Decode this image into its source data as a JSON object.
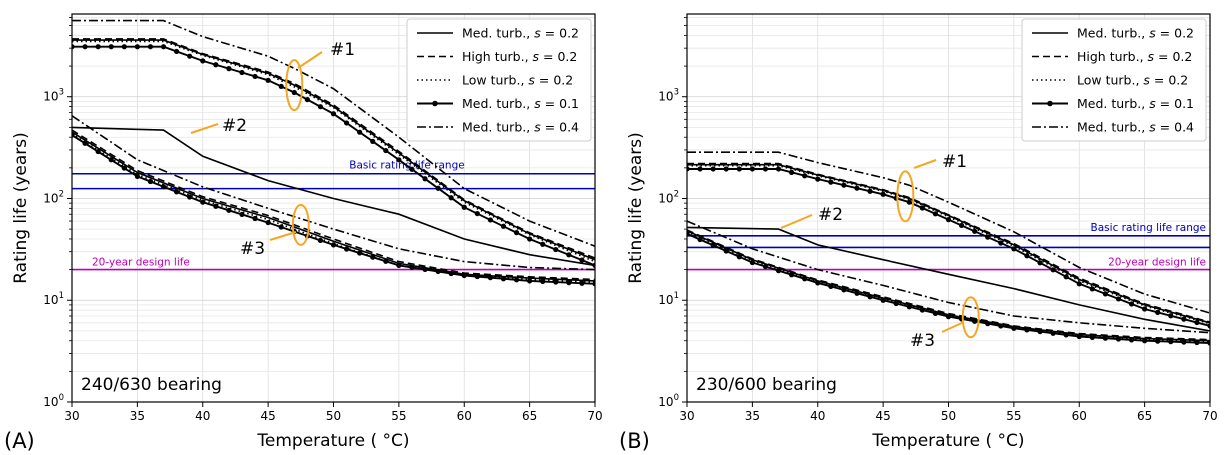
{
  "colors": {
    "basic_range": "#0000bb",
    "design_life": "#bb00bb",
    "callout": "#f5a623",
    "series": "#000000"
  },
  "chart_data": [
    {
      "type": "line",
      "panel_label": "(A)",
      "annotation": "240/630 bearing",
      "xlabel": "Temperature (°C)",
      "ylabel": "Rating life (years)",
      "xlim": [
        30,
        70
      ],
      "ylim": [
        1,
        6500
      ],
      "yscale": "log",
      "grid": true,
      "legend_position": "top-right",
      "x_ticks": [
        30,
        35,
        40,
        45,
        50,
        55,
        60,
        65,
        70
      ],
      "y_ticks": [
        "10^0",
        "10^1",
        "10^2",
        "10^3"
      ],
      "reference_lines": [
        {
          "label": "Basic rating life range",
          "values": [
            125,
            175
          ]
        },
        {
          "label": "20-year design life",
          "values": [
            20
          ]
        }
      ],
      "callouts": [
        "#1",
        "#2",
        "#3"
      ],
      "legend": [
        {
          "text": "Med. turb., s = 0.2",
          "style": "solid"
        },
        {
          "text": "High turb., s = 0.2",
          "style": "dashed"
        },
        {
          "text": "Low turb., s = 0.2",
          "style": "dotted"
        },
        {
          "text": "Med. turb., s = 0.1",
          "style": "solid-marker"
        },
        {
          "text": "Med. turb., s = 0.4",
          "style": "dashdot"
        }
      ],
      "series": [
        {
          "name": "#1 Med. turb., s = 0.2",
          "style": "solid",
          "x": [
            30,
            37,
            40,
            45,
            47,
            50,
            55,
            60,
            65,
            70
          ],
          "y": [
            3600,
            3600,
            2600,
            1700,
            1300,
            800,
            280,
            95,
            45,
            25
          ]
        },
        {
          "name": "#1 High turb., s = 0.2",
          "style": "dashed",
          "x": [
            30,
            37,
            40,
            45,
            47,
            50,
            55,
            60,
            65,
            70
          ],
          "y": [
            3700,
            3700,
            2650,
            1750,
            1350,
            830,
            290,
            97,
            46,
            26
          ]
        },
        {
          "name": "#1 Low turb., s = 0.2",
          "style": "dotted",
          "x": [
            30,
            37,
            40,
            45,
            47,
            50,
            55,
            60,
            65,
            70
          ],
          "y": [
            3500,
            3500,
            2550,
            1650,
            1250,
            780,
            270,
            92,
            44,
            24
          ]
        },
        {
          "name": "#1 Med. turb., s = 0.1",
          "style": "solid-marker",
          "x": [
            30,
            37,
            40,
            45,
            47,
            50,
            55,
            60,
            65,
            70
          ],
          "y": [
            3100,
            3100,
            2250,
            1450,
            1100,
            680,
            240,
            82,
            40,
            22
          ]
        },
        {
          "name": "#1 Med. turb., s = 0.4",
          "style": "dashdot",
          "x": [
            30,
            37,
            40,
            45,
            47,
            50,
            55,
            60,
            65,
            70
          ],
          "y": [
            5600,
            5600,
            3900,
            2500,
            1900,
            1200,
            400,
            125,
            60,
            34
          ]
        },
        {
          "name": "#2 Med. turb., s = 0.2",
          "style": "solid",
          "x": [
            30,
            37,
            40,
            45,
            50,
            55,
            60,
            65,
            70
          ],
          "y": [
            500,
            470,
            260,
            150,
            100,
            70,
            40,
            28,
            22
          ]
        },
        {
          "name": "#3 Med. turb., s = 0.2",
          "style": "solid",
          "x": [
            30,
            35,
            40,
            45,
            50,
            55,
            60,
            65,
            70
          ],
          "y": [
            450,
            180,
            100,
            65,
            38,
            23,
            18,
            16.5,
            15.5
          ]
        },
        {
          "name": "#3 High turb., s = 0.2",
          "style": "dashed",
          "x": [
            30,
            35,
            40,
            45,
            50,
            55,
            60,
            65,
            70
          ],
          "y": [
            470,
            188,
            104,
            68,
            40,
            24,
            18.5,
            17,
            16
          ]
        },
        {
          "name": "#3 Low turb., s = 0.2",
          "style": "dotted",
          "x": [
            30,
            35,
            40,
            45,
            50,
            55,
            60,
            65,
            70
          ],
          "y": [
            430,
            172,
            96,
            62,
            36,
            22,
            17.5,
            16,
            15
          ]
        },
        {
          "name": "#3 Med. turb., s = 0.1",
          "style": "solid-marker",
          "x": [
            30,
            35,
            40,
            45,
            50,
            55,
            60,
            65,
            70
          ],
          "y": [
            420,
            165,
            92,
            58,
            35,
            22,
            17.5,
            15.5,
            14.5
          ]
        },
        {
          "name": "#3 Med. turb., s = 0.4",
          "style": "dashdot",
          "x": [
            30,
            35,
            40,
            45,
            50,
            55,
            60,
            65,
            70
          ],
          "y": [
            650,
            240,
            130,
            80,
            50,
            32,
            24,
            21,
            20
          ]
        }
      ]
    },
    {
      "type": "line",
      "panel_label": "(B)",
      "annotation": "230/600 bearing",
      "xlabel": "Temperature (°C)",
      "ylabel": "Rating life (years)",
      "xlim": [
        30,
        70
      ],
      "ylim": [
        1,
        6500
      ],
      "yscale": "log",
      "grid": true,
      "legend_position": "top-right",
      "x_ticks": [
        30,
        35,
        40,
        45,
        50,
        55,
        60,
        65,
        70
      ],
      "y_ticks": [
        "10^0",
        "10^1",
        "10^2",
        "10^3"
      ],
      "reference_lines": [
        {
          "label": "Basic rating life range",
          "values": [
            33,
            43
          ]
        },
        {
          "label": "20-year design life",
          "values": [
            20
          ]
        }
      ],
      "callouts": [
        "#1",
        "#2",
        "#3"
      ],
      "legend": [
        {
          "text": "Med. turb., s = 0.2",
          "style": "solid"
        },
        {
          "text": "High turb., s = 0.2",
          "style": "dashed"
        },
        {
          "text": "Low turb., s = 0.2",
          "style": "dotted"
        },
        {
          "text": "Med. turb., s = 0.1",
          "style": "solid-marker"
        },
        {
          "text": "Med. turb., s = 0.4",
          "style": "dashdot"
        }
      ],
      "series": [
        {
          "name": "#1 Med. turb., s = 0.2",
          "style": "solid",
          "x": [
            30,
            37,
            40,
            45,
            47,
            50,
            55,
            60,
            65,
            70
          ],
          "y": [
            215,
            215,
            170,
            120,
            100,
            68,
            35,
            16,
            9,
            6
          ]
        },
        {
          "name": "#1 High turb., s = 0.2",
          "style": "dashed",
          "x": [
            30,
            37,
            40,
            45,
            47,
            50,
            55,
            60,
            65,
            70
          ],
          "y": [
            220,
            220,
            173,
            122,
            102,
            69,
            36,
            16.5,
            9.2,
            6.1
          ]
        },
        {
          "name": "#1 Low turb., s = 0.2",
          "style": "dotted",
          "x": [
            30,
            37,
            40,
            45,
            47,
            50,
            55,
            60,
            65,
            70
          ],
          "y": [
            210,
            210,
            167,
            118,
            98,
            66,
            34,
            15.5,
            8.8,
            5.9
          ]
        },
        {
          "name": "#1 Med. turb., s = 0.1",
          "style": "solid-marker",
          "x": [
            30,
            37,
            40,
            45,
            47,
            50,
            55,
            60,
            65,
            70
          ],
          "y": [
            195,
            195,
            155,
            110,
            92,
            62,
            32,
            14.5,
            8.2,
            5.6
          ]
        },
        {
          "name": "#1 Med. turb., s = 0.4",
          "style": "dashdot",
          "x": [
            30,
            37,
            40,
            45,
            47,
            50,
            55,
            60,
            65,
            70
          ],
          "y": [
            285,
            285,
            225,
            160,
            135,
            92,
            47,
            21,
            11.5,
            7.5
          ]
        },
        {
          "name": "#2 Med. turb., s = 0.2",
          "style": "solid",
          "x": [
            30,
            37,
            40,
            45,
            50,
            55,
            60,
            65,
            70
          ],
          "y": [
            52,
            50,
            35,
            25,
            18,
            13,
            9,
            6.5,
            5
          ]
        },
        {
          "name": "#3 Med. turb., s = 0.2",
          "style": "solid",
          "x": [
            30,
            35,
            40,
            45,
            50,
            55,
            60,
            65,
            70
          ],
          "y": [
            48,
            25,
            15.5,
            10.5,
            7.2,
            5.5,
            4.6,
            4.2,
            4
          ]
        },
        {
          "name": "#3 High turb., s = 0.2",
          "style": "dashed",
          "x": [
            30,
            35,
            40,
            45,
            50,
            55,
            60,
            65,
            70
          ],
          "y": [
            49,
            25.5,
            15.8,
            10.8,
            7.4,
            5.6,
            4.7,
            4.3,
            4.1
          ]
        },
        {
          "name": "#3 Low turb., s = 0.2",
          "style": "dotted",
          "x": [
            30,
            35,
            40,
            45,
            50,
            55,
            60,
            65,
            70
          ],
          "y": [
            47,
            24.5,
            15.2,
            10.3,
            7.1,
            5.4,
            4.5,
            4.1,
            3.9
          ]
        },
        {
          "name": "#3 Med. turb., s = 0.1",
          "style": "solid-marker",
          "x": [
            30,
            35,
            40,
            45,
            50,
            55,
            60,
            65,
            70
          ],
          "y": [
            45,
            23.5,
            14.8,
            10,
            6.9,
            5.3,
            4.4,
            4,
            3.8
          ]
        },
        {
          "name": "#3 Med. turb., s = 0.4",
          "style": "dashdot",
          "x": [
            30,
            35,
            40,
            45,
            50,
            55,
            60,
            65,
            70
          ],
          "y": [
            60,
            32,
            20,
            14,
            9.5,
            7,
            6,
            5.3,
            4.8
          ]
        }
      ]
    }
  ]
}
